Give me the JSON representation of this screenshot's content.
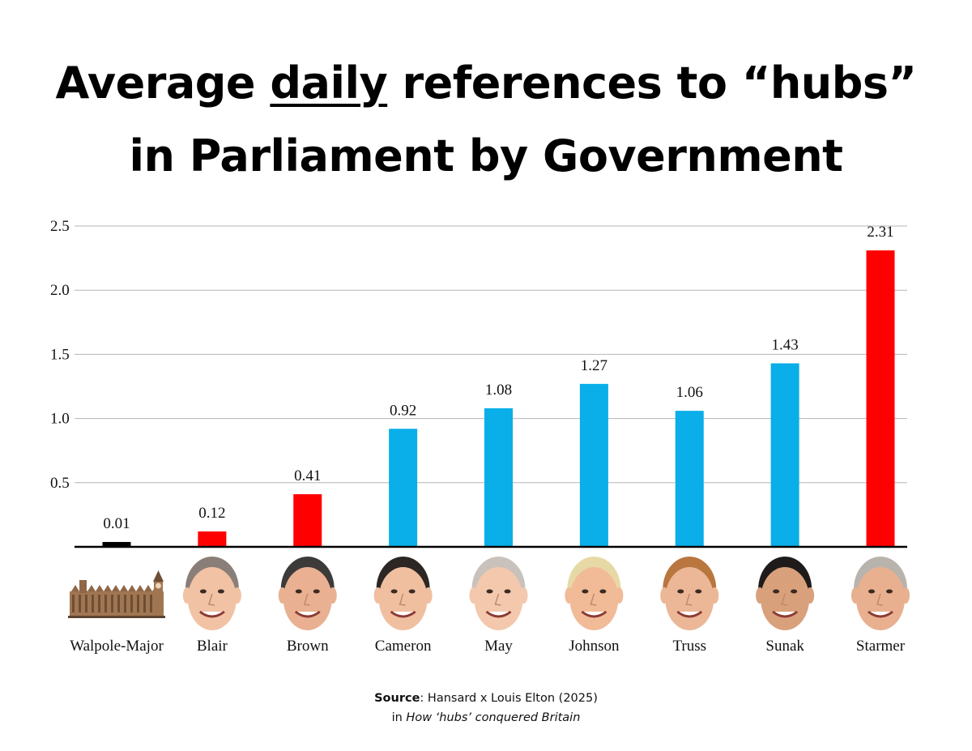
{
  "title": {
    "line1_pre": "Average ",
    "line1_emph": "daily",
    "line1_post": " references to “hubs”",
    "line2": "in Parliament by Government"
  },
  "chart_data": {
    "type": "bar",
    "title": "Average daily references to “hubs” in Parliament by Government",
    "xlabel": "",
    "ylabel": "",
    "ylim": [
      0,
      2.5
    ],
    "yticks": [
      "0.5",
      "1.0",
      "1.5",
      "2.0",
      "2.5"
    ],
    "yticks_values": [
      0.5,
      1.0,
      1.5,
      2.0,
      2.5
    ],
    "grid": true,
    "categories": [
      "Walpole-Major",
      "Blair",
      "Brown",
      "Cameron",
      "May",
      "Johnson",
      "Truss",
      "Sunak",
      "Starmer"
    ],
    "values": [
      0.01,
      0.12,
      0.41,
      0.92,
      1.08,
      1.27,
      1.06,
      1.43,
      2.31
    ],
    "value_labels": [
      "0.01",
      "0.12",
      "0.41",
      "0.92",
      "1.08",
      "1.27",
      "1.06",
      "1.43",
      "2.31"
    ],
    "bar_colors": [
      "#000000",
      "#ff0000",
      "#ff0000",
      "#0aaee8",
      "#0aaee8",
      "#0aaee8",
      "#0aaee8",
      "#0aaee8",
      "#ff0000"
    ],
    "icons": [
      "parliament-building-icon",
      "portrait-icon",
      "portrait-icon",
      "portrait-icon",
      "portrait-icon",
      "portrait-icon",
      "portrait-icon",
      "portrait-icon",
      "portrait-icon"
    ]
  },
  "source": {
    "label": "Source",
    "text": ": Hansard x Louis Elton (2025)",
    "line2_pre": "in ",
    "line2_title": "How ‘hubs’ conquered Britain"
  }
}
